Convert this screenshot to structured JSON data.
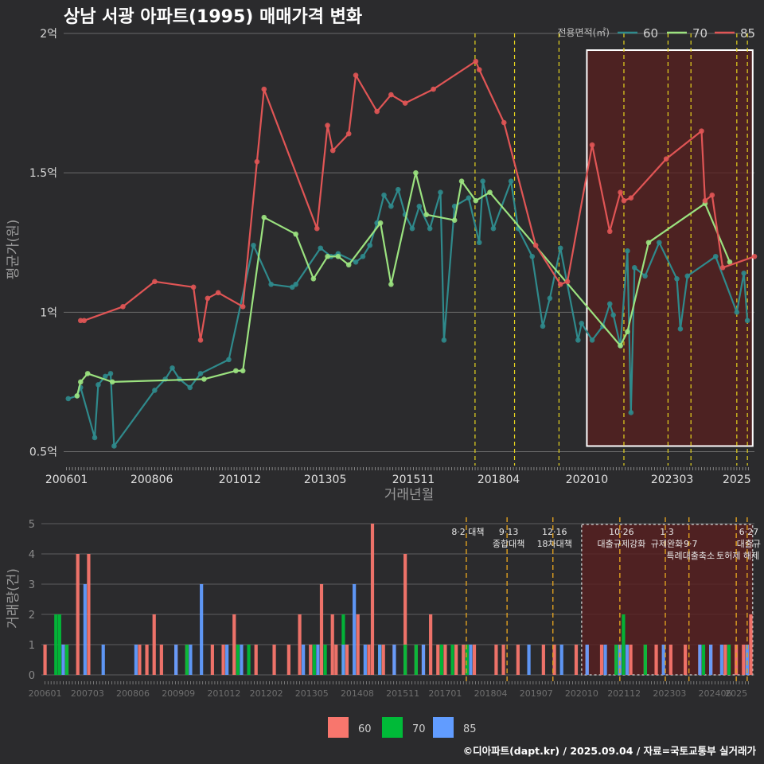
{
  "title": "상남 서광 아파트(1995) 매매가격 변화",
  "footer": "©디아파트(dapt.kr) / 2025.09.04 / 자료=국토교통부 실거래가",
  "colors": {
    "c60": "#2f8a8c",
    "c70": "#9be27f",
    "c85": "#e05555",
    "bar60": "#f8766d",
    "bar70": "#00ba38",
    "bar85": "#619cff",
    "event": "#e6d41e",
    "shade": "#5a1f1f"
  },
  "chart_data": [
    {
      "type": "line",
      "title": "상남 서광 아파트(1995) 매매가격 변화",
      "xlabel": "거래년월",
      "ylabel": "평균가(원)",
      "legend_title": "전용면적(㎡)",
      "legend": [
        "60",
        "70",
        "85"
      ],
      "xticks": [
        "200601",
        "200806",
        "201012",
        "201305",
        "201511",
        "201804",
        "202010",
        "202303",
        "2025"
      ],
      "yticks": [
        "0.5억",
        "1억",
        "1.5억",
        "2억"
      ],
      "ylim": [
        0.45,
        2.0
      ],
      "x_unit": "fractional year",
      "event_lines_x": [
        2017.58,
        2018.7,
        2019.96,
        2021.8,
        2023.05,
        2023.7,
        2025.0,
        2025.3
      ],
      "shaded_region_x": [
        2020.75,
        2025.45
      ],
      "series": [
        {
          "name": "60",
          "points": [
            [
              2006.05,
              0.69
            ],
            [
              2006.3,
              0.7
            ],
            [
              2006.4,
              0.73
            ],
            [
              2006.8,
              0.55
            ],
            [
              2006.9,
              0.74
            ],
            [
              2007.1,
              0.77
            ],
            [
              2007.25,
              0.78
            ],
            [
              2007.35,
              0.52
            ],
            [
              2008.5,
              0.72
            ],
            [
              2008.8,
              0.76
            ],
            [
              2009.0,
              0.8
            ],
            [
              2009.2,
              0.76
            ],
            [
              2009.5,
              0.73
            ],
            [
              2009.8,
              0.78
            ],
            [
              2010.6,
              0.83
            ],
            [
              2011.3,
              1.24
            ],
            [
              2011.8,
              1.1
            ],
            [
              2012.4,
              1.09
            ],
            [
              2012.5,
              1.1
            ],
            [
              2013.2,
              1.23
            ],
            [
              2013.5,
              1.2
            ],
            [
              2013.7,
              1.21
            ],
            [
              2014.2,
              1.18
            ],
            [
              2014.4,
              1.2
            ],
            [
              2014.6,
              1.24
            ],
            [
              2014.8,
              1.32
            ],
            [
              2015.0,
              1.42
            ],
            [
              2015.2,
              1.38
            ],
            [
              2015.4,
              1.44
            ],
            [
              2015.6,
              1.35
            ],
            [
              2015.8,
              1.3
            ],
            [
              2016.0,
              1.38
            ],
            [
              2016.3,
              1.3
            ],
            [
              2016.6,
              1.43
            ],
            [
              2016.7,
              0.9
            ],
            [
              2017.0,
              1.38
            ],
            [
              2017.4,
              1.41
            ],
            [
              2017.7,
              1.25
            ],
            [
              2017.8,
              1.47
            ],
            [
              2018.1,
              1.3
            ],
            [
              2018.6,
              1.47
            ],
            [
              2018.8,
              1.3
            ],
            [
              2019.2,
              1.2
            ],
            [
              2019.5,
              0.95
            ],
            [
              2019.7,
              1.05
            ],
            [
              2020.0,
              1.23
            ],
            [
              2020.5,
              0.9
            ],
            [
              2020.6,
              0.96
            ],
            [
              2020.9,
              0.9
            ],
            [
              2021.2,
              0.95
            ],
            [
              2021.4,
              1.03
            ],
            [
              2021.5,
              0.99
            ],
            [
              2021.7,
              0.88
            ],
            [
              2021.9,
              1.22
            ],
            [
              2022.0,
              0.64
            ],
            [
              2022.1,
              1.16
            ],
            [
              2022.4,
              1.13
            ],
            [
              2022.8,
              1.25
            ],
            [
              2023.3,
              1.12
            ],
            [
              2023.4,
              0.94
            ],
            [
              2023.6,
              1.13
            ],
            [
              2024.4,
              1.2
            ],
            [
              2025.0,
              1.0
            ],
            [
              2025.2,
              1.14
            ],
            [
              2025.3,
              0.97
            ]
          ]
        },
        {
          "name": "70",
          "points": [
            [
              2006.3,
              0.7
            ],
            [
              2006.4,
              0.75
            ],
            [
              2006.6,
              0.78
            ],
            [
              2007.3,
              0.75
            ],
            [
              2009.9,
              0.76
            ],
            [
              2010.8,
              0.79
            ],
            [
              2011.0,
              0.79
            ],
            [
              2011.6,
              1.34
            ],
            [
              2012.5,
              1.28
            ],
            [
              2013.0,
              1.12
            ],
            [
              2013.4,
              1.2
            ],
            [
              2013.7,
              1.2
            ],
            [
              2014.0,
              1.17
            ],
            [
              2014.9,
              1.32
            ],
            [
              2015.2,
              1.1
            ],
            [
              2015.9,
              1.5
            ],
            [
              2016.2,
              1.35
            ],
            [
              2017.0,
              1.33
            ],
            [
              2017.2,
              1.47
            ],
            [
              2017.6,
              1.4
            ],
            [
              2018.0,
              1.43
            ],
            [
              2021.7,
              0.88
            ],
            [
              2021.9,
              0.93
            ],
            [
              2022.5,
              1.25
            ],
            [
              2024.1,
              1.39
            ],
            [
              2024.8,
              1.18
            ]
          ]
        },
        {
          "name": "85",
          "points": [
            [
              2006.4,
              0.97
            ],
            [
              2006.5,
              0.97
            ],
            [
              2007.6,
              1.02
            ],
            [
              2008.5,
              1.11
            ],
            [
              2009.6,
              1.09
            ],
            [
              2009.8,
              0.9
            ],
            [
              2010.0,
              1.05
            ],
            [
              2010.3,
              1.07
            ],
            [
              2011.0,
              1.02
            ],
            [
              2011.4,
              1.54
            ],
            [
              2011.6,
              1.8
            ],
            [
              2013.1,
              1.3
            ],
            [
              2013.4,
              1.67
            ],
            [
              2013.55,
              1.58
            ],
            [
              2014.0,
              1.64
            ],
            [
              2014.2,
              1.85
            ],
            [
              2014.8,
              1.72
            ],
            [
              2015.2,
              1.78
            ],
            [
              2015.6,
              1.75
            ],
            [
              2016.4,
              1.8
            ],
            [
              2017.6,
              1.9
            ],
            [
              2017.7,
              1.87
            ],
            [
              2018.4,
              1.68
            ],
            [
              2019.3,
              1.24
            ],
            [
              2020.0,
              1.1
            ],
            [
              2020.2,
              1.11
            ],
            [
              2020.9,
              1.6
            ],
            [
              2021.4,
              1.29
            ],
            [
              2021.7,
              1.43
            ],
            [
              2021.8,
              1.4
            ],
            [
              2022.0,
              1.41
            ],
            [
              2023.0,
              1.55
            ],
            [
              2024.0,
              1.65
            ],
            [
              2024.1,
              1.4
            ],
            [
              2024.3,
              1.42
            ],
            [
              2024.6,
              1.16
            ],
            [
              2025.5,
              1.2
            ]
          ]
        }
      ]
    },
    {
      "type": "bar",
      "xlabel": "",
      "ylabel": "거래량(건)",
      "legend": [
        "60",
        "70",
        "85"
      ],
      "xticks": [
        "200601",
        "200703",
        "200806",
        "200909",
        "201012",
        "201202",
        "201305",
        "201408",
        "201511",
        "201701",
        "201804",
        "201907",
        "202010",
        "202112",
        "202303",
        "202406",
        "2025"
      ],
      "yticks": [
        "0",
        "1",
        "2",
        "3",
        "4",
        "5"
      ],
      "ylim": [
        0,
        5
      ],
      "series": [
        {
          "name": "60",
          "bars": [
            [
              2006.0,
              1
            ],
            [
              2006.6,
              1
            ],
            [
              2006.9,
              4
            ],
            [
              2007.2,
              4
            ],
            [
              2008.6,
              1
            ],
            [
              2008.8,
              1
            ],
            [
              2009.0,
              2
            ],
            [
              2009.2,
              1
            ],
            [
              2009.6,
              1
            ],
            [
              2009.9,
              1
            ],
            [
              2010.6,
              1
            ],
            [
              2010.9,
              1
            ],
            [
              2011.2,
              2
            ],
            [
              2011.8,
              1
            ],
            [
              2012.3,
              1
            ],
            [
              2012.7,
              1
            ],
            [
              2013.0,
              2
            ],
            [
              2013.3,
              1
            ],
            [
              2013.6,
              3
            ],
            [
              2013.9,
              2
            ],
            [
              2014.0,
              1
            ],
            [
              2014.3,
              1
            ],
            [
              2014.6,
              2
            ],
            [
              2014.9,
              1
            ],
            [
              2015.0,
              5
            ],
            [
              2015.3,
              1
            ],
            [
              2015.6,
              1
            ],
            [
              2015.9,
              4
            ],
            [
              2016.2,
              1
            ],
            [
              2016.4,
              1
            ],
            [
              2016.6,
              2
            ],
            [
              2016.8,
              1
            ],
            [
              2017.0,
              1
            ],
            [
              2017.3,
              1
            ],
            [
              2017.5,
              1
            ],
            [
              2017.8,
              1
            ],
            [
              2018.4,
              1
            ],
            [
              2018.6,
              1
            ],
            [
              2019.0,
              1
            ],
            [
              2019.7,
              1
            ],
            [
              2020.0,
              1
            ],
            [
              2020.6,
              1
            ],
            [
              2020.9,
              1
            ],
            [
              2021.3,
              1
            ],
            [
              2021.7,
              1
            ],
            [
              2022.1,
              1
            ],
            [
              2022.5,
              1
            ],
            [
              2022.8,
              1
            ],
            [
              2023.2,
              1
            ],
            [
              2023.6,
              1
            ],
            [
              2024.0,
              1
            ],
            [
              2024.3,
              1
            ],
            [
              2024.7,
              1
            ],
            [
              2025.0,
              1
            ],
            [
              2025.2,
              1
            ],
            [
              2025.4,
              2
            ]
          ]
        },
        {
          "name": "70",
          "bars": [
            [
              2006.3,
              2
            ],
            [
              2006.4,
              2
            ],
            [
              2006.6,
              1
            ],
            [
              2009.9,
              1
            ],
            [
              2011.3,
              1
            ],
            [
              2011.6,
              1
            ],
            [
              2013.4,
              1
            ],
            [
              2013.7,
              1
            ],
            [
              2014.2,
              2
            ],
            [
              2015.2,
              1
            ],
            [
              2015.9,
              1
            ],
            [
              2016.2,
              1
            ],
            [
              2016.9,
              1
            ],
            [
              2017.2,
              1
            ],
            [
              2017.6,
              1
            ],
            [
              2021.7,
              1
            ],
            [
              2021.9,
              2
            ],
            [
              2022.5,
              1
            ],
            [
              2024.1,
              1
            ],
            [
              2024.8,
              1
            ]
          ]
        },
        {
          "name": "85",
          "bars": [
            [
              2006.5,
              1
            ],
            [
              2007.1,
              3
            ],
            [
              2007.6,
              1
            ],
            [
              2008.5,
              1
            ],
            [
              2009.6,
              1
            ],
            [
              2010.0,
              1
            ],
            [
              2010.3,
              3
            ],
            [
              2011.0,
              1
            ],
            [
              2011.4,
              1
            ],
            [
              2013.1,
              1
            ],
            [
              2013.5,
              1
            ],
            [
              2014.2,
              1
            ],
            [
              2014.5,
              3
            ],
            [
              2014.8,
              1
            ],
            [
              2015.2,
              1
            ],
            [
              2015.6,
              1
            ],
            [
              2016.4,
              1
            ],
            [
              2017.7,
              1
            ],
            [
              2019.3,
              1
            ],
            [
              2020.2,
              1
            ],
            [
              2020.9,
              1
            ],
            [
              2021.4,
              1
            ],
            [
              2021.8,
              1
            ],
            [
              2022.0,
              1
            ],
            [
              2023.0,
              1
            ],
            [
              2024.0,
              1
            ],
            [
              2024.3,
              1
            ],
            [
              2024.6,
              1
            ],
            [
              2025.3,
              1
            ]
          ]
        }
      ],
      "annotations": [
        {
          "x": 2017.58,
          "lines": [
            "8·2 대책"
          ]
        },
        {
          "x": 2018.7,
          "lines": [
            "9·13",
            "종합대책"
          ]
        },
        {
          "x": 2019.96,
          "lines": [
            "12·16",
            "18차대책"
          ]
        },
        {
          "x": 2021.8,
          "lines": [
            "10·26",
            "대출규제강화"
          ]
        },
        {
          "x": 2023.05,
          "lines": [
            "1·3",
            "규제완화"
          ]
        },
        {
          "x": 2023.7,
          "lines": [
            "",
            "9·7",
            "특례대출축소"
          ]
        },
        {
          "x": 2025.0,
          "lines": [
            "",
            "",
            "토허제 해제"
          ]
        },
        {
          "x": 2025.3,
          "lines": [
            "6·27",
            "대출규"
          ]
        }
      ],
      "event_lines_x": [
        2017.58,
        2018.7,
        2019.96,
        2021.8,
        2023.05,
        2023.7,
        2025.0,
        2025.3
      ],
      "shaded_region_x": [
        2020.75,
        2025.45
      ]
    }
  ]
}
